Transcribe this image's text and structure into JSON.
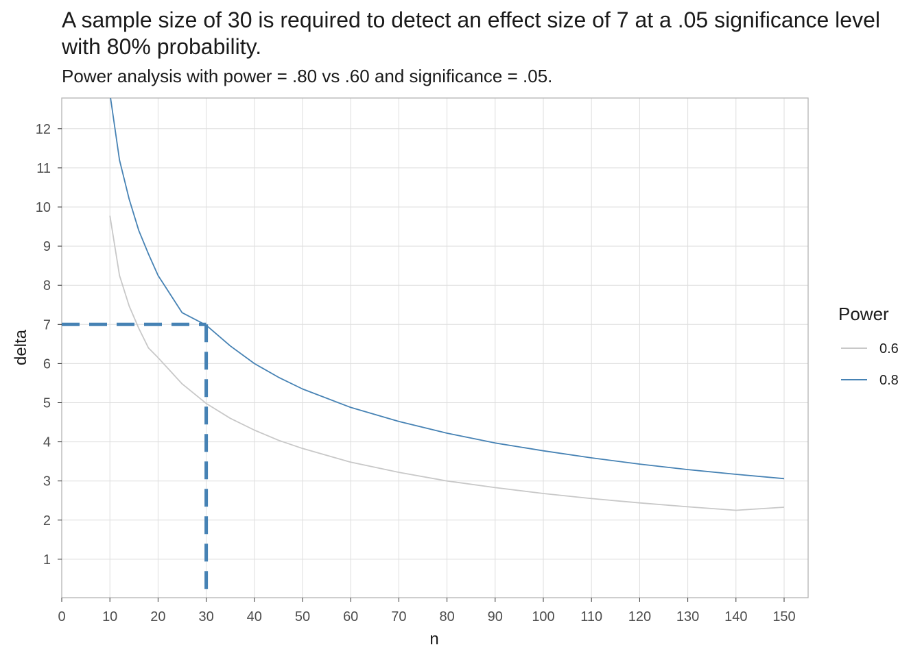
{
  "chart_data": {
    "type": "line",
    "title": "A sample size of 30 is required to detect an effect size of 7 at a .05 significance level with 80% probability.",
    "subtitle": "Power analysis with power = .80 vs .60 and significance = .05.",
    "xlabel": "n",
    "ylabel": "delta",
    "xlim": [
      0,
      155
    ],
    "ylim": [
      0,
      12.8
    ],
    "x_ticks": [
      0,
      10,
      20,
      30,
      40,
      50,
      60,
      70,
      80,
      90,
      100,
      110,
      120,
      130,
      140,
      150
    ],
    "y_ticks": [
      1,
      2,
      3,
      4,
      5,
      6,
      7,
      8,
      9,
      10,
      11,
      12
    ],
    "grid": true,
    "legend": {
      "title": "Power",
      "position": "right"
    },
    "series": [
      {
        "name": "0.6",
        "color": "#c8c8c8",
        "x": [
          10,
          12,
          14,
          16,
          18,
          20,
          25,
          30,
          35,
          40,
          45,
          50,
          60,
          70,
          80,
          90,
          100,
          110,
          120,
          130,
          140,
          150
        ],
        "y": [
          9.78,
          8.25,
          7.47,
          6.9,
          6.4,
          6.15,
          5.48,
          4.98,
          4.6,
          4.3,
          4.04,
          3.83,
          3.48,
          3.22,
          3.0,
          2.83,
          2.68,
          2.55,
          2.44,
          2.34,
          2.25,
          2.33
        ]
      },
      {
        "name": "0.8",
        "color": "#4682b4",
        "x": [
          10,
          12,
          14,
          16,
          18,
          20,
          25,
          30,
          35,
          40,
          45,
          50,
          60,
          70,
          80,
          90,
          100,
          110,
          120,
          130,
          140,
          150
        ],
        "y": [
          12.9,
          11.2,
          10.2,
          9.4,
          8.8,
          8.25,
          7.3,
          6.98,
          6.45,
          6.0,
          5.65,
          5.35,
          4.88,
          4.52,
          4.22,
          3.97,
          3.77,
          3.59,
          3.43,
          3.29,
          3.17,
          3.06
        ]
      }
    ],
    "annotation": {
      "type": "dashed-guide",
      "x": 30,
      "y": 7,
      "color": "#4682b4"
    }
  }
}
